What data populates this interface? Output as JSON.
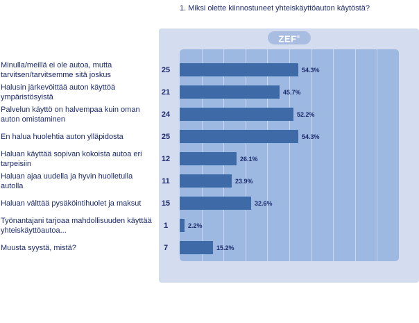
{
  "question": "1. Miksi olette kiinnostuneet yhteiskäyttöauton käytöstä?",
  "logo": {
    "text": "ZEF",
    "mark": "®"
  },
  "colors": {
    "panel": "#d4dcef",
    "plot": "#9db9e2",
    "bar": "#3f6aa8",
    "text": "#1c2a6b"
  },
  "chart_data": {
    "type": "bar",
    "orientation": "horizontal",
    "title": "1. Miksi olette kiinnostuneet yhteiskäyttöauton käytöstä?",
    "xlim": [
      0,
      100
    ],
    "grid": true,
    "categories": [
      "Minulla/meillä ei ole autoa, mutta tarvitsen/tarvitsemme sitä joskus",
      "Halusin järkevöittää auton käyttöä ympäristösyistä",
      "Palvelun käyttö on halvempaa kuin oman auton omistaminen",
      "En halua huolehtia auton ylläpidosta",
      "Haluan käyttää sopivan kokoista autoa eri tarpeisiin",
      "Haluan ajaa uudella ja hyvin huolletulla autolla",
      "Haluan välttää pysäköintihuolet ja maksut",
      "Työnantajani tarjoaa mahdollisuuden käyttää yhteiskäyttöautoa...",
      "Muusta syystä, mistä?"
    ],
    "counts": [
      "25",
      "21",
      "24",
      "25",
      "12",
      "11",
      "15",
      "1",
      "7"
    ],
    "values": [
      54.3,
      45.7,
      52.2,
      54.3,
      26.1,
      23.9,
      32.6,
      2.2,
      15.2
    ],
    "value_labels": [
      "54.3%",
      "45.7%",
      "52.2%",
      "54.3%",
      "26.1%",
      "23.9%",
      "32.6%",
      "2.2%",
      "15.2%"
    ]
  }
}
